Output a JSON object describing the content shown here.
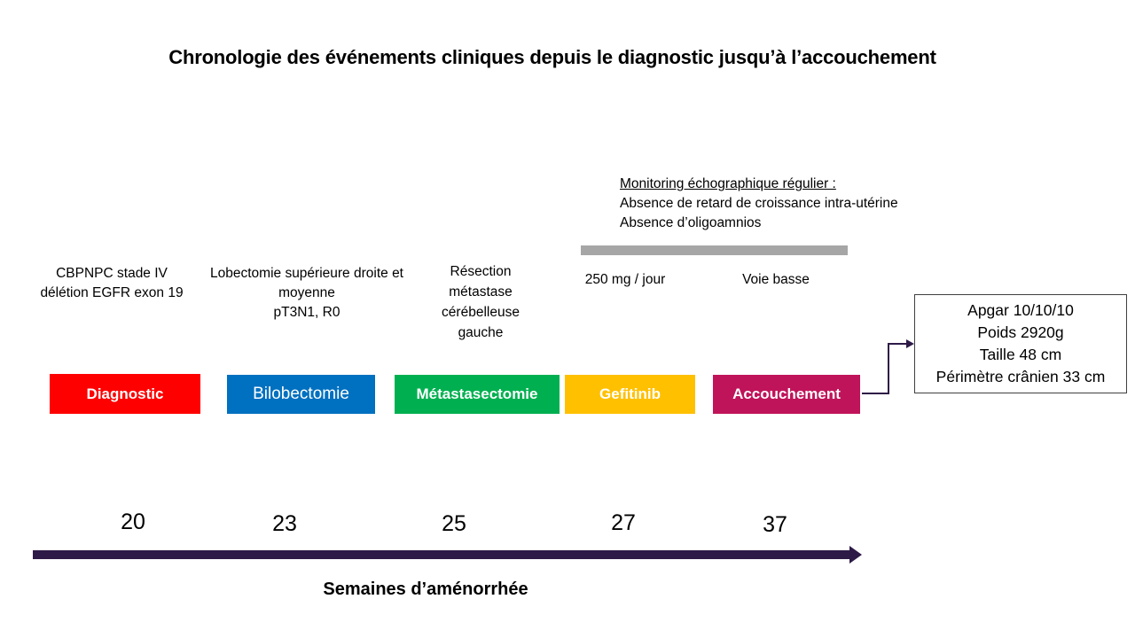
{
  "title": "Chronologie des événements cliniques depuis le diagnostic jusqu’à l’accouchement",
  "monitoring": {
    "heading": "Monitoring échographique régulier :",
    "line1": "Absence de retard de croissance intra-utérine",
    "line2": "Absence d’oligoamnios"
  },
  "events": [
    {
      "label": "Diagnostic",
      "color": "#ff0000",
      "desc": [
        "CBPNPC stade IV",
        "délétion EGFR exon 19"
      ],
      "week": "20"
    },
    {
      "label": "Bilobectomie",
      "color": "#0070c0",
      "desc": [
        "Lobectomie supérieure droite et",
        "moyenne",
        "pT3N1, R0"
      ],
      "week": "23"
    },
    {
      "label": "Métastasectomie",
      "color": "#00b050",
      "desc": [
        "Résection",
        "métastase",
        "cérébelleuse",
        "gauche"
      ],
      "week": "25"
    },
    {
      "label": "Gefitinib",
      "color": "#ffc000",
      "desc": [
        "250 mg / jour"
      ],
      "week": "27"
    },
    {
      "label": "Accouchement",
      "color": "#c0145a",
      "desc": [
        "Voie basse"
      ],
      "week": "37"
    }
  ],
  "outcome": {
    "line1": "Apgar 10/10/10",
    "line2": "Poids 2920g",
    "line3": "Taille 48 cm",
    "line4": "Périmètre crânien  33 cm"
  },
  "axis": {
    "label": "Semaines d’aménorrhée",
    "color": "#2e1a47"
  }
}
